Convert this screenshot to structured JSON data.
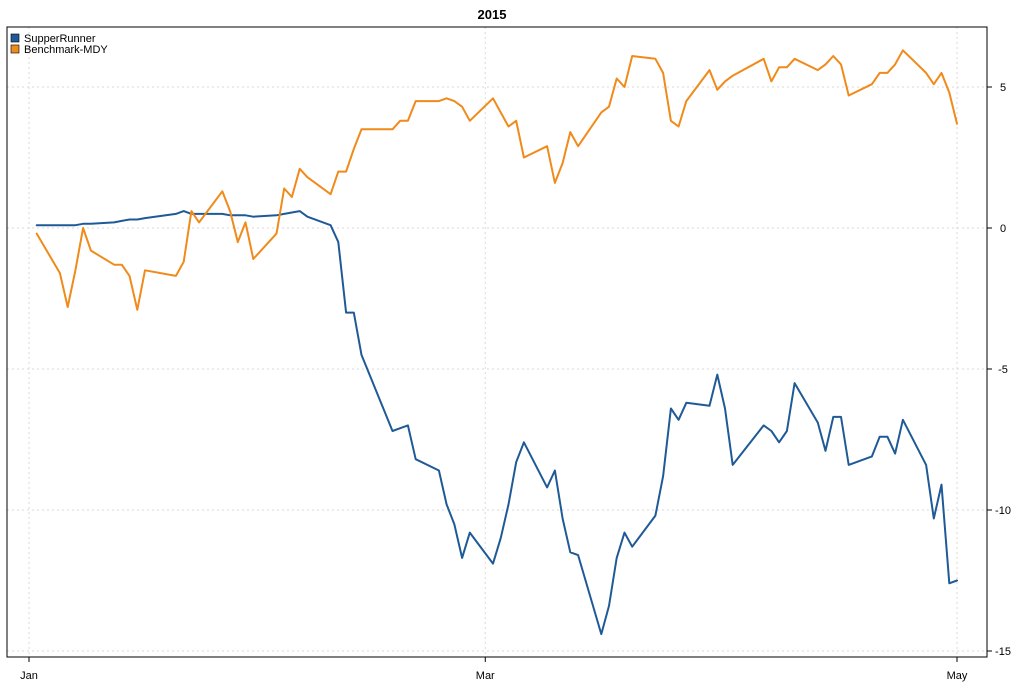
{
  "chart_data": {
    "type": "line",
    "title": "2015",
    "xlabel": "",
    "ylabel": "",
    "x_axis": {
      "type": "date",
      "range": [
        "2015-01-01",
        "2015-05-01"
      ],
      "ticks": [
        {
          "date": "2015-01-01",
          "label": "Jan"
        },
        {
          "date": "2015-03-01",
          "label": "Mar"
        },
        {
          "date": "2015-05-01",
          "label": "May"
        }
      ],
      "grid": true
    },
    "y_axis": {
      "position": "right",
      "range": [
        -15.5,
        7.5
      ],
      "ticks": [
        5,
        0,
        -5,
        -10,
        -15
      ],
      "grid": true
    },
    "legend": {
      "position": "top-left"
    },
    "series": [
      {
        "name": "SupperRunner",
        "color": "#1f5a96",
        "points": [
          [
            "2015-01-02",
            0.1
          ],
          [
            "2015-01-05",
            0.1
          ],
          [
            "2015-01-06",
            0.1
          ],
          [
            "2015-01-07",
            0.1
          ],
          [
            "2015-01-08",
            0.15
          ],
          [
            "2015-01-09",
            0.15
          ],
          [
            "2015-01-12",
            0.2
          ],
          [
            "2015-01-13",
            0.25
          ],
          [
            "2015-01-14",
            0.3
          ],
          [
            "2015-01-15",
            0.3
          ],
          [
            "2015-01-16",
            0.35
          ],
          [
            "2015-01-20",
            0.5
          ],
          [
            "2015-01-21",
            0.6
          ],
          [
            "2015-01-22",
            0.5
          ],
          [
            "2015-01-23",
            0.5
          ],
          [
            "2015-01-26",
            0.5
          ],
          [
            "2015-01-27",
            0.45
          ],
          [
            "2015-01-28",
            0.45
          ],
          [
            "2015-01-29",
            0.45
          ],
          [
            "2015-01-30",
            0.4
          ],
          [
            "2015-02-02",
            0.45
          ],
          [
            "2015-02-03",
            0.5
          ],
          [
            "2015-02-04",
            0.55
          ],
          [
            "2015-02-05",
            0.6
          ],
          [
            "2015-02-06",
            0.4
          ],
          [
            "2015-02-09",
            0.1
          ],
          [
            "2015-02-10",
            -0.5
          ],
          [
            "2015-02-11",
            -3.0
          ],
          [
            "2015-02-12",
            -3.0
          ],
          [
            "2015-02-13",
            -4.5
          ],
          [
            "2015-02-17",
            -7.2
          ],
          [
            "2015-02-18",
            -7.1
          ],
          [
            "2015-02-19",
            -7.0
          ],
          [
            "2015-02-20",
            -8.2
          ],
          [
            "2015-02-23",
            -8.6
          ],
          [
            "2015-02-24",
            -9.8
          ],
          [
            "2015-02-25",
            -10.5
          ],
          [
            "2015-02-26",
            -11.7
          ],
          [
            "2015-02-27",
            -10.8
          ],
          [
            "2015-03-02",
            -11.9
          ],
          [
            "2015-03-03",
            -11.0
          ],
          [
            "2015-03-04",
            -9.8
          ],
          [
            "2015-03-05",
            -8.3
          ],
          [
            "2015-03-06",
            -7.6
          ],
          [
            "2015-03-09",
            -9.2
          ],
          [
            "2015-03-10",
            -8.6
          ],
          [
            "2015-03-11",
            -10.3
          ],
          [
            "2015-03-12",
            -11.5
          ],
          [
            "2015-03-13",
            -11.6
          ],
          [
            "2015-03-16",
            -14.4
          ],
          [
            "2015-03-17",
            -13.4
          ],
          [
            "2015-03-18",
            -11.7
          ],
          [
            "2015-03-19",
            -10.8
          ],
          [
            "2015-03-20",
            -11.3
          ],
          [
            "2015-03-23",
            -10.2
          ],
          [
            "2015-03-24",
            -8.8
          ],
          [
            "2015-03-25",
            -6.4
          ],
          [
            "2015-03-26",
            -6.8
          ],
          [
            "2015-03-27",
            -6.2
          ],
          [
            "2015-03-30",
            -6.3
          ],
          [
            "2015-03-31",
            -5.2
          ],
          [
            "2015-04-01",
            -6.4
          ],
          [
            "2015-04-02",
            -8.4
          ],
          [
            "2015-04-06",
            -7.0
          ],
          [
            "2015-04-07",
            -7.2
          ],
          [
            "2015-04-08",
            -7.6
          ],
          [
            "2015-04-09",
            -7.2
          ],
          [
            "2015-04-10",
            -5.5
          ],
          [
            "2015-04-13",
            -6.9
          ],
          [
            "2015-04-14",
            -7.9
          ],
          [
            "2015-04-15",
            -6.7
          ],
          [
            "2015-04-16",
            -6.7
          ],
          [
            "2015-04-17",
            -8.4
          ],
          [
            "2015-04-20",
            -8.1
          ],
          [
            "2015-04-21",
            -7.4
          ],
          [
            "2015-04-22",
            -7.4
          ],
          [
            "2015-04-23",
            -8.0
          ],
          [
            "2015-04-24",
            -6.8
          ],
          [
            "2015-04-27",
            -8.4
          ],
          [
            "2015-04-28",
            -10.3
          ],
          [
            "2015-04-29",
            -9.1
          ],
          [
            "2015-04-30",
            -12.6
          ],
          [
            "2015-05-01",
            -12.5
          ]
        ]
      },
      {
        "name": "Benchmark-MDY",
        "color": "#f08a1a",
        "points": [
          [
            "2015-01-02",
            -0.2
          ],
          [
            "2015-01-05",
            -1.6
          ],
          [
            "2015-01-06",
            -2.8
          ],
          [
            "2015-01-07",
            -1.5
          ],
          [
            "2015-01-08",
            0.0
          ],
          [
            "2015-01-09",
            -0.8
          ],
          [
            "2015-01-12",
            -1.3
          ],
          [
            "2015-01-13",
            -1.3
          ],
          [
            "2015-01-14",
            -1.7
          ],
          [
            "2015-01-15",
            -2.9
          ],
          [
            "2015-01-16",
            -1.5
          ],
          [
            "2015-01-20",
            -1.7
          ],
          [
            "2015-01-21",
            -1.2
          ],
          [
            "2015-01-22",
            0.6
          ],
          [
            "2015-01-23",
            0.2
          ],
          [
            "2015-01-26",
            1.3
          ],
          [
            "2015-01-27",
            0.6
          ],
          [
            "2015-01-28",
            -0.5
          ],
          [
            "2015-01-29",
            0.2
          ],
          [
            "2015-01-30",
            -1.1
          ],
          [
            "2015-02-02",
            -0.2
          ],
          [
            "2015-02-03",
            1.4
          ],
          [
            "2015-02-04",
            1.1
          ],
          [
            "2015-02-05",
            2.1
          ],
          [
            "2015-02-06",
            1.8
          ],
          [
            "2015-02-09",
            1.2
          ],
          [
            "2015-02-10",
            2.0
          ],
          [
            "2015-02-11",
            2.0
          ],
          [
            "2015-02-12",
            2.8
          ],
          [
            "2015-02-13",
            3.5
          ],
          [
            "2015-02-17",
            3.5
          ],
          [
            "2015-02-18",
            3.8
          ],
          [
            "2015-02-19",
            3.8
          ],
          [
            "2015-02-20",
            4.5
          ],
          [
            "2015-02-23",
            4.5
          ],
          [
            "2015-02-24",
            4.6
          ],
          [
            "2015-02-25",
            4.5
          ],
          [
            "2015-02-26",
            4.3
          ],
          [
            "2015-02-27",
            3.8
          ],
          [
            "2015-03-02",
            4.6
          ],
          [
            "2015-03-03",
            4.1
          ],
          [
            "2015-03-04",
            3.6
          ],
          [
            "2015-03-05",
            3.8
          ],
          [
            "2015-03-06",
            2.5
          ],
          [
            "2015-03-09",
            2.9
          ],
          [
            "2015-03-10",
            1.6
          ],
          [
            "2015-03-11",
            2.3
          ],
          [
            "2015-03-12",
            3.4
          ],
          [
            "2015-03-13",
            2.9
          ],
          [
            "2015-03-16",
            4.1
          ],
          [
            "2015-03-17",
            4.3
          ],
          [
            "2015-03-18",
            5.3
          ],
          [
            "2015-03-19",
            5.0
          ],
          [
            "2015-03-20",
            6.1
          ],
          [
            "2015-03-23",
            6.0
          ],
          [
            "2015-03-24",
            5.5
          ],
          [
            "2015-03-25",
            3.8
          ],
          [
            "2015-03-26",
            3.6
          ],
          [
            "2015-03-27",
            4.5
          ],
          [
            "2015-03-30",
            5.6
          ],
          [
            "2015-03-31",
            4.9
          ],
          [
            "2015-04-01",
            5.2
          ],
          [
            "2015-04-02",
            5.4
          ],
          [
            "2015-04-06",
            6.0
          ],
          [
            "2015-04-07",
            5.2
          ],
          [
            "2015-04-08",
            5.7
          ],
          [
            "2015-04-09",
            5.7
          ],
          [
            "2015-04-10",
            6.0
          ],
          [
            "2015-04-13",
            5.6
          ],
          [
            "2015-04-14",
            5.8
          ],
          [
            "2015-04-15",
            6.1
          ],
          [
            "2015-04-16",
            5.8
          ],
          [
            "2015-04-17",
            4.7
          ],
          [
            "2015-04-20",
            5.1
          ],
          [
            "2015-04-21",
            5.5
          ],
          [
            "2015-04-22",
            5.5
          ],
          [
            "2015-04-23",
            5.8
          ],
          [
            "2015-04-24",
            6.3
          ],
          [
            "2015-04-27",
            5.5
          ],
          [
            "2015-04-28",
            5.1
          ],
          [
            "2015-04-29",
            5.5
          ],
          [
            "2015-04-30",
            4.8
          ],
          [
            "2015-05-01",
            3.7
          ]
        ]
      }
    ]
  }
}
